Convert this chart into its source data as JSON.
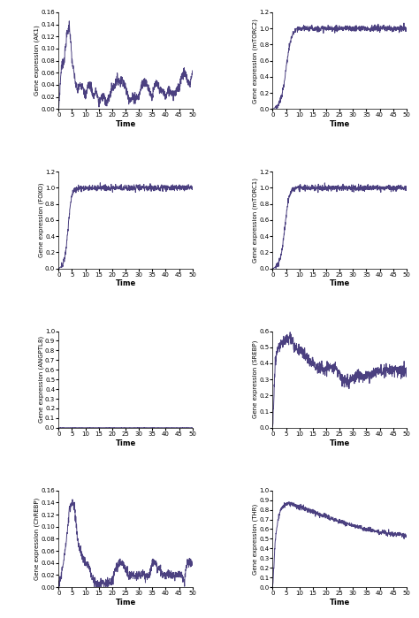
{
  "line_color": "#4B4080",
  "line_width": 0.7,
  "bg_color": "#ffffff",
  "plots": [
    {
      "label": "Gene expression (AK1)",
      "ylim": [
        0,
        0.16
      ],
      "yticks": [
        0,
        0.02,
        0.04,
        0.06,
        0.08,
        0.1,
        0.12,
        0.14,
        0.16
      ],
      "xticks": [
        0,
        5,
        10,
        15,
        20,
        25,
        30,
        35,
        40,
        45,
        50
      ],
      "xlim": [
        0,
        50
      ],
      "shape": "ak1"
    },
    {
      "label": "Gene expression (mTORC2)",
      "ylim": [
        0,
        1.2
      ],
      "yticks": [
        0,
        0.2,
        0.4,
        0.6,
        0.8,
        1.0,
        1.2
      ],
      "xticks": [
        0,
        5,
        10,
        15,
        20,
        25,
        30,
        35,
        40,
        45,
        50
      ],
      "xlim": [
        0,
        50
      ],
      "shape": "mtorc2"
    },
    {
      "label": "Gene expression (FOXO)",
      "ylim": [
        0,
        1.2
      ],
      "yticks": [
        0,
        0.2,
        0.4,
        0.6,
        0.8,
        1.0,
        1.2
      ],
      "xticks": [
        0,
        5,
        10,
        15,
        20,
        25,
        30,
        35,
        40,
        45,
        50
      ],
      "xlim": [
        0,
        50
      ],
      "shape": "foxo"
    },
    {
      "label": "Gene expression (mTORC1)",
      "ylim": [
        0,
        1.2
      ],
      "yticks": [
        0,
        0.2,
        0.4,
        0.6,
        0.8,
        1.0,
        1.2
      ],
      "xticks": [
        0,
        5,
        10,
        15,
        20,
        25,
        30,
        35,
        40,
        45,
        50
      ],
      "xlim": [
        0,
        50
      ],
      "shape": "mtorc1"
    },
    {
      "label": "Gene expression (ANGPTL8)",
      "ylim": [
        0,
        1.0
      ],
      "yticks": [
        0,
        0.1,
        0.2,
        0.3,
        0.4,
        0.5,
        0.6,
        0.7,
        0.8,
        0.9,
        1.0
      ],
      "xticks": [
        0,
        5,
        10,
        15,
        20,
        25,
        30,
        35,
        40,
        45,
        50
      ],
      "xlim": [
        0,
        50
      ],
      "shape": "angptl8"
    },
    {
      "label": "Gene expression (SREBP)",
      "ylim": [
        0,
        0.6
      ],
      "yticks": [
        0,
        0.1,
        0.2,
        0.3,
        0.4,
        0.5,
        0.6
      ],
      "xticks": [
        0,
        5,
        10,
        15,
        20,
        25,
        30,
        35,
        40,
        45,
        50
      ],
      "xlim": [
        0,
        50
      ],
      "shape": "srebp"
    },
    {
      "label": "Gene expression (ChREBP)",
      "ylim": [
        0,
        0.16
      ],
      "yticks": [
        0,
        0.02,
        0.04,
        0.06,
        0.08,
        0.1,
        0.12,
        0.14,
        0.16
      ],
      "xticks": [
        0,
        5,
        10,
        15,
        20,
        25,
        30,
        35,
        40,
        45,
        50
      ],
      "xlim": [
        0,
        50
      ],
      "shape": "chrebp"
    },
    {
      "label": "Gene expression (THR)",
      "ylim": [
        0,
        1.0
      ],
      "yticks": [
        0,
        0.1,
        0.2,
        0.3,
        0.4,
        0.5,
        0.6,
        0.7,
        0.8,
        0.9,
        1.0
      ],
      "xticks": [
        0,
        5,
        10,
        15,
        20,
        25,
        30,
        35,
        40,
        45,
        50
      ],
      "xlim": [
        0,
        50
      ],
      "shape": "thr"
    }
  ]
}
